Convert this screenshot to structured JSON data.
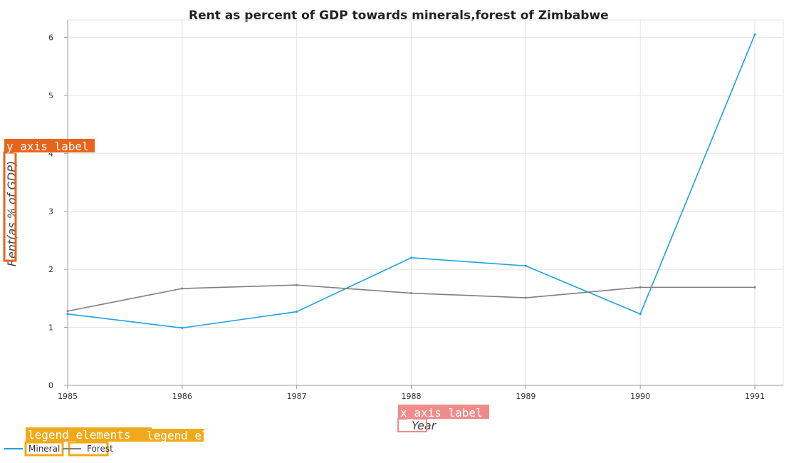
{
  "colors": {
    "mineral": "#1ba1e2",
    "forest": "#7f7f7f",
    "grid": "#e3e3e3",
    "axis": "#999999",
    "overlay_y": "#e8641b",
    "overlay_x": "#f08b8b",
    "overlay_legend": "#f0a91b"
  },
  "overlays": {
    "y_axis": "y_axis_label",
    "x_axis": "x_axis_label",
    "legend": "legend_elements",
    "legend_second": "legend_elements"
  },
  "chart_data": {
    "type": "line",
    "title": "Rent as percent of GDP towards minerals,forest of Zimbabwe",
    "xlabel": "Year",
    "ylabel": "Rent(as % of GDP)",
    "categories": [
      "1985",
      "1986",
      "1987",
      "1988",
      "1989",
      "1990",
      "1991"
    ],
    "ylim": [
      0,
      6.3
    ],
    "yticks": [
      0,
      1,
      2,
      3,
      4,
      5,
      6
    ],
    "grid": true,
    "legend_position": "bottom-left",
    "series": [
      {
        "name": "Mineral",
        "color": "#1ba1e2",
        "values": [
          1.23,
          0.99,
          1.27,
          2.2,
          2.06,
          1.23,
          6.05
        ]
      },
      {
        "name": "Forest",
        "color": "#7f7f7f",
        "values": [
          1.28,
          1.67,
          1.73,
          1.59,
          1.51,
          1.69,
          1.69
        ]
      }
    ]
  }
}
